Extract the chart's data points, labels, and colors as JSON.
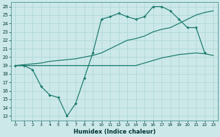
{
  "xlabel": "Humidex (Indice chaleur)",
  "bg_color": "#cce8e8",
  "grid_color": "#aad4d4",
  "line_color": "#1a7a6e",
  "xlim": [
    -0.5,
    23.5
  ],
  "ylim": [
    12.5,
    26.5
  ],
  "xticks": [
    0,
    1,
    2,
    3,
    4,
    5,
    6,
    7,
    8,
    9,
    10,
    11,
    12,
    13,
    14,
    15,
    16,
    17,
    18,
    19,
    20,
    21,
    22,
    23
  ],
  "yticks": [
    13,
    14,
    15,
    16,
    17,
    18,
    19,
    20,
    21,
    22,
    23,
    24,
    25,
    26
  ],
  "line1_x": [
    0,
    1,
    2,
    3,
    4,
    5,
    6,
    7,
    8,
    9,
    10,
    11,
    12,
    13,
    14,
    15,
    16,
    17,
    18,
    19,
    20,
    21,
    22
  ],
  "line1_y": [
    19,
    19,
    18.5,
    16.5,
    15.5,
    15.2,
    13.0,
    14.5,
    17.5,
    20.5,
    24.5,
    24.8,
    25.2,
    24.8,
    24.5,
    24.8,
    26.0,
    26.0,
    25.5,
    24.5,
    23.5,
    23.5,
    20.5
  ],
  "line2_x": [
    0,
    1,
    2,
    3,
    4,
    5,
    6,
    7,
    8,
    9,
    10,
    11,
    12,
    13,
    14,
    15,
    16,
    17,
    18,
    19,
    20,
    21,
    22,
    23
  ],
  "line2_y": [
    19,
    19.1,
    19.2,
    19.3,
    19.5,
    19.6,
    19.7,
    19.8,
    20.0,
    20.2,
    20.5,
    21.0,
    21.5,
    22.0,
    22.2,
    22.5,
    23.0,
    23.3,
    23.5,
    24.0,
    24.5,
    25.0,
    25.3,
    25.5
  ],
  "line3_x": [
    0,
    1,
    2,
    3,
    4,
    5,
    6,
    7,
    8,
    9,
    10,
    11,
    12,
    13,
    14,
    15,
    16,
    17,
    18,
    19,
    20,
    21,
    22,
    23
  ],
  "line3_y": [
    19,
    19,
    19,
    19,
    19,
    19,
    19,
    19,
    19,
    19,
    19,
    19,
    19,
    19,
    19,
    19.3,
    19.6,
    19.9,
    20.1,
    20.3,
    20.4,
    20.5,
    20.4,
    20.2
  ]
}
